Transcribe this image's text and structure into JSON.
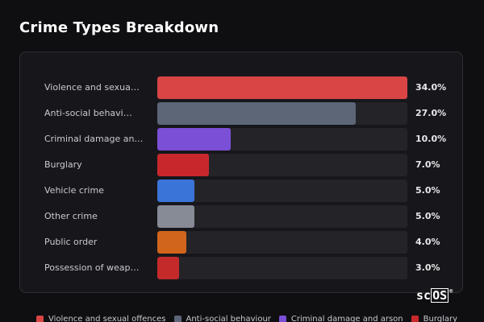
{
  "title": "Crime Types Breakdown",
  "logo_text": "scOS",
  "logo_mark": "®",
  "chart_data": {
    "type": "bar",
    "orientation": "horizontal",
    "title": "Crime Types Breakdown",
    "categories": [
      "Violence and sexua…",
      "Anti-social behavi…",
      "Criminal damage an…",
      "Burglary",
      "Vehicle crime",
      "Other crime",
      "Public order",
      "Possession of weap…"
    ],
    "values": [
      34.0,
      27.0,
      10.0,
      7.0,
      5.0,
      5.0,
      4.0,
      3.0
    ],
    "value_labels": [
      "34.0%",
      "27.0%",
      "10.0%",
      "7.0%",
      "5.0%",
      "5.0%",
      "4.0%",
      "3.0%"
    ],
    "colors": [
      "#d94545",
      "#5d6677",
      "#7b4fd6",
      "#c8282b",
      "#3b74d8",
      "#868b96",
      "#d2651c",
      "#c42a2a"
    ],
    "xlim": [
      0,
      34
    ],
    "grid": false,
    "legend": {
      "placement": "bottom",
      "entries": [
        {
          "label": "Violence and sexual offences",
          "color": "#d94545"
        },
        {
          "label": "Anti-social behaviour",
          "color": "#5d6677"
        },
        {
          "label": "Criminal damage and arson",
          "color": "#7b4fd6"
        },
        {
          "label": "Burglary",
          "color": "#c8282b"
        }
      ]
    }
  }
}
